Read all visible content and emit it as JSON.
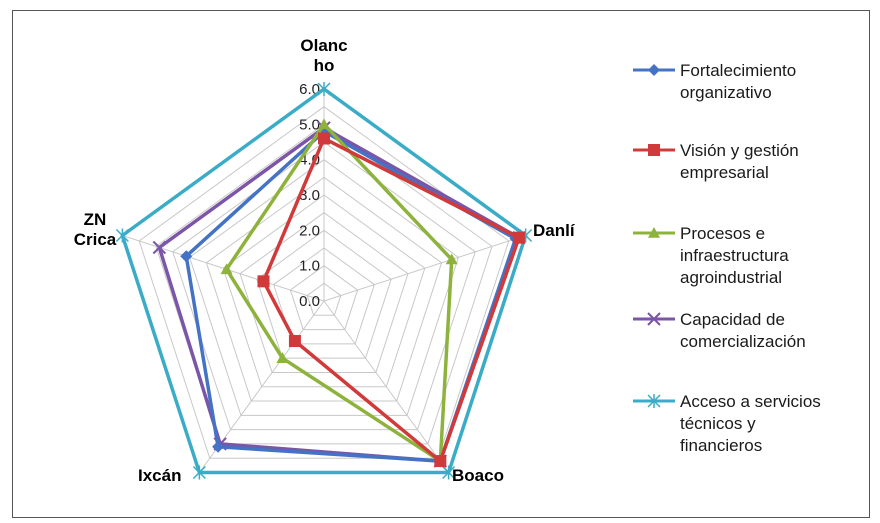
{
  "chart_data": {
    "type": "radar",
    "axes": [
      {
        "label_lines": [
          "Olanc",
          "ho"
        ]
      },
      {
        "label_lines": [
          "Danlí"
        ]
      },
      {
        "label_lines": [
          "Boaco"
        ]
      },
      {
        "label_lines": [
          "Ixcán"
        ]
      },
      {
        "label_lines": [
          "ZN",
          "Crica"
        ]
      }
    ],
    "categories": [
      "Olancho",
      "Danlí",
      "Boaco",
      "Ixcán",
      "ZN Crica"
    ],
    "tick_labels": [
      "0.0",
      "1.0",
      "2.0",
      "3.0",
      "4.0",
      "5.0",
      "6.0"
    ],
    "rlim": [
      0,
      6
    ],
    "series": [
      {
        "name_lines": [
          "Fortalecimiento",
          "organizativo"
        ],
        "marker": "diamond",
        "color": "#4472C4",
        "values": [
          4.8,
          5.7,
          5.6,
          5.1,
          4.1
        ]
      },
      {
        "name_lines": [
          "Visión y gestión",
          "empresarial"
        ],
        "marker": "square",
        "color": "#D03A3A",
        "values": [
          4.6,
          5.8,
          5.6,
          1.4,
          1.8
        ]
      },
      {
        "name_lines": [
          "Procesos e",
          "infraestructura",
          "agroindustrial"
        ],
        "marker": "triangle",
        "color": "#8DB33C",
        "values": [
          5.0,
          3.8,
          5.6,
          2.0,
          2.9
        ]
      },
      {
        "name_lines": [
          "Capacidad de",
          "comercialización"
        ],
        "marker": "x",
        "color": "#7B55A8",
        "values": [
          4.9,
          5.8,
          5.6,
          5.0,
          4.9
        ]
      },
      {
        "name_lines": [
          "Acceso a servicios",
          "técnicos y",
          "financieros"
        ],
        "marker": "asterisk",
        "color": "#3AACC7",
        "values": [
          6.0,
          6.0,
          6.0,
          6.0,
          6.0
        ]
      }
    ]
  }
}
